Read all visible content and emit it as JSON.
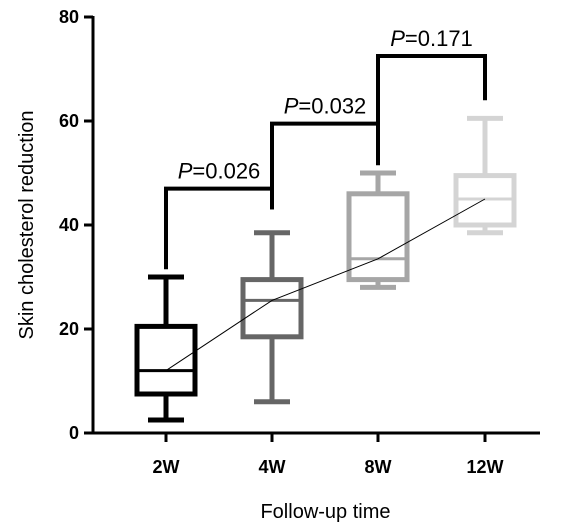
{
  "chart_data": {
    "type": "box",
    "xlabel": "Follow-up time",
    "ylabel": "Skin cholesterol reduction",
    "ylim": [
      0,
      80
    ],
    "yticks": [
      0,
      20,
      40,
      60,
      80
    ],
    "grid": false,
    "categories": [
      "2W",
      "4W",
      "8W",
      "12W"
    ],
    "boxes": [
      {
        "category": "2W",
        "min": 2.5,
        "q1": 7.5,
        "median": 12,
        "q3": 20.5,
        "max": 30,
        "color": "#000000"
      },
      {
        "category": "4W",
        "min": 6,
        "q1": 18.5,
        "median": 25.5,
        "q3": 29.5,
        "max": 38.5,
        "color": "#666666"
      },
      {
        "category": "8W",
        "min": 28,
        "q1": 29.5,
        "median": 33.5,
        "q3": 46,
        "max": 50,
        "color": "#a6a6a6"
      },
      {
        "category": "12W",
        "min": 38.5,
        "q1": 40,
        "median": 45,
        "q3": 49.5,
        "max": 60.5,
        "color": "#d4d4d4"
      }
    ],
    "trend_line": {
      "through": "median",
      "values": [
        12,
        25.5,
        33.5,
        45
      ]
    },
    "comparisons": [
      {
        "from": "2W",
        "to": "4W",
        "label_p": "P",
        "label_rest": "=0.026",
        "y": 47,
        "left_drop": 31.5,
        "right_drop": 43
      },
      {
        "from": "4W",
        "to": "8W",
        "label_p": "P",
        "label_rest": "=0.032",
        "y": 59.5,
        "left_drop": 43,
        "right_drop": 51.5
      },
      {
        "from": "8W",
        "to": "12W",
        "label_p": "P",
        "label_rest": "=0.171",
        "y": 72.5,
        "left_drop": 59.5,
        "right_drop": 64
      }
    ]
  }
}
